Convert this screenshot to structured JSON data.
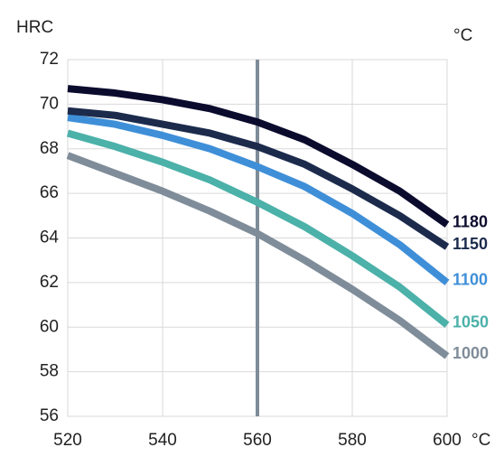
{
  "chart_data": {
    "type": "line",
    "ylabel": "HRC",
    "unit_top": "°C",
    "xlabel": "°C",
    "x": [
      520,
      530,
      540,
      550,
      560,
      570,
      580,
      590,
      600
    ],
    "xlim": [
      520,
      600
    ],
    "xticks": [
      520,
      540,
      560,
      580,
      600
    ],
    "ylim": [
      56,
      72
    ],
    "yticks": [
      56,
      58,
      60,
      62,
      64,
      66,
      68,
      70,
      72
    ],
    "grid": true,
    "marker_x": 560,
    "marker_color": "#7f8c99",
    "series": [
      {
        "name": "1180",
        "color": "#0b0b2e",
        "values": [
          70.7,
          70.5,
          70.2,
          69.8,
          69.2,
          68.4,
          67.3,
          66.1,
          64.6
        ]
      },
      {
        "name": "1150",
        "color": "#1c2b4c",
        "values": [
          69.7,
          69.5,
          69.1,
          68.7,
          68.1,
          67.3,
          66.2,
          65.0,
          63.6
        ]
      },
      {
        "name": "1100",
        "color": "#3f8fd8",
        "values": [
          69.4,
          69.1,
          68.6,
          68.0,
          67.2,
          66.3,
          65.1,
          63.7,
          62.0
        ]
      },
      {
        "name": "1050",
        "color": "#4bb1a9",
        "values": [
          68.7,
          68.1,
          67.4,
          66.6,
          65.6,
          64.5,
          63.2,
          61.8,
          60.1
        ]
      },
      {
        "name": "1000",
        "color": "#7f8c99",
        "values": [
          67.7,
          66.9,
          66.1,
          65.2,
          64.2,
          63.0,
          61.7,
          60.3,
          58.7
        ]
      }
    ]
  }
}
